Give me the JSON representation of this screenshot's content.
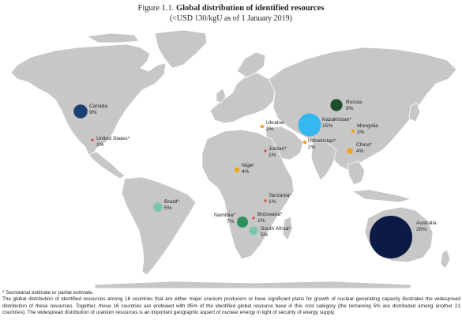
{
  "figure": {
    "prefix": "Figure 1.1.",
    "title": "Global distribution of identified resources",
    "subtitle": "(<USD 130/kgU as of 1 January 2019)"
  },
  "colors": {
    "land": "#c7c7c7",
    "ocean": "#ffffff",
    "tiny_dot": "#e0452b",
    "small_dot": "#f0a31b",
    "seafoam": "#79c6a8",
    "green": "#2f8f5b",
    "dark_green": "#1e4d2b",
    "canada_blue": "#1b3f73",
    "kazakhstan_blue": "#35b8f1",
    "australia_navy": "#0b1b45"
  },
  "countries": [
    {
      "name": "Canada",
      "pct": "9%",
      "color": "#1b3f73"
    },
    {
      "name": "United States*",
      "pct": "1%",
      "color": "#e0452b"
    },
    {
      "name": "Brazil*",
      "pct": "5%",
      "color": "#79c6a8"
    },
    {
      "name": "Niger",
      "pct": "4%",
      "color": "#f0a31b"
    },
    {
      "name": "Namibia*",
      "pct": "7%",
      "color": "#2f8f5b"
    },
    {
      "name": "Botswana*",
      "pct": "1%",
      "color": "#e0452b"
    },
    {
      "name": "South Africa*",
      "pct": "5%",
      "color": "#79c6a8"
    },
    {
      "name": "Tanzania*",
      "pct": "1%",
      "color": "#e0452b"
    },
    {
      "name": "Jordan*",
      "pct": "1%",
      "color": "#e0452b"
    },
    {
      "name": "Ukraine",
      "pct": "2%",
      "color": "#f0a31b"
    },
    {
      "name": "Russia",
      "pct": "8%",
      "color": "#1e4d2b"
    },
    {
      "name": "Kazakhstan*",
      "pct": "15%",
      "color": "#35b8f1"
    },
    {
      "name": "Uzbekistan*",
      "pct": "2%",
      "color": "#f0a31b"
    },
    {
      "name": "Mongolia",
      "pct": "2%",
      "color": "#f0a31b"
    },
    {
      "name": "China*",
      "pct": "4%",
      "color": "#f0a31b"
    },
    {
      "name": "Australia",
      "pct": "28%",
      "color": "#0b1b45"
    }
  ],
  "footnote": "* Secretariat estimate or partial estimate.",
  "description": "The global distribution of identified resources among 16 countries that are either major uranium producers or have significant plans for growth of nuclear generating capacity illustrates the widespread distribution of these resources. Together, these 16 countries are endowed with 95% of the identified global resource base in this cost category (the remaining 5% are distributed among another 21 countries). The widespread distribution of uranium resources is an important geographic aspect of nuclear energy in light of security of energy supply."
}
